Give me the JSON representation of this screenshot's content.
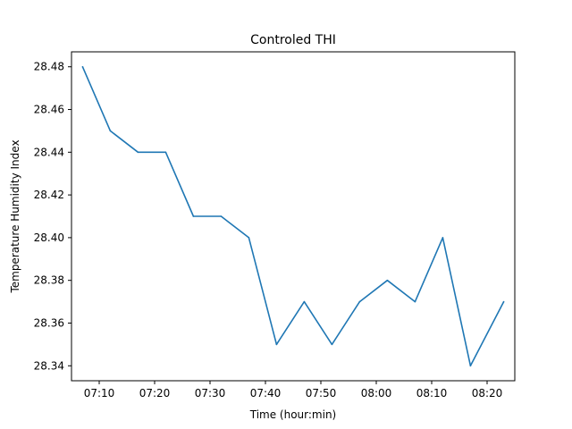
{
  "chart_data": {
    "type": "line",
    "title": "Controled THI",
    "xlabel": "Time (hour:min)",
    "ylabel": "Temperature Humidity Index",
    "x_ticks": [
      "07:10",
      "07:20",
      "07:30",
      "07:40",
      "07:50",
      "08:00",
      "08:10",
      "08:20"
    ],
    "y_ticks": [
      "28.34",
      "28.36",
      "28.38",
      "28.40",
      "28.42",
      "28.44",
      "28.46",
      "28.48"
    ],
    "ylim": [
      28.333,
      28.487
    ],
    "xlim": [
      "07:05",
      "08:25"
    ],
    "grid": false,
    "series": [
      {
        "color": "#1f77b4",
        "x": [
          "07:07",
          "07:12",
          "07:17",
          "07:22",
          "07:27",
          "07:32",
          "07:37",
          "07:42",
          "07:47",
          "07:52",
          "07:57",
          "08:02",
          "08:07",
          "08:12",
          "08:17",
          "08:23"
        ],
        "values": [
          28.48,
          28.45,
          28.44,
          28.44,
          28.41,
          28.41,
          28.4,
          28.35,
          28.37,
          28.35,
          28.37,
          28.38,
          28.37,
          28.4,
          28.34,
          28.37
        ]
      }
    ]
  }
}
